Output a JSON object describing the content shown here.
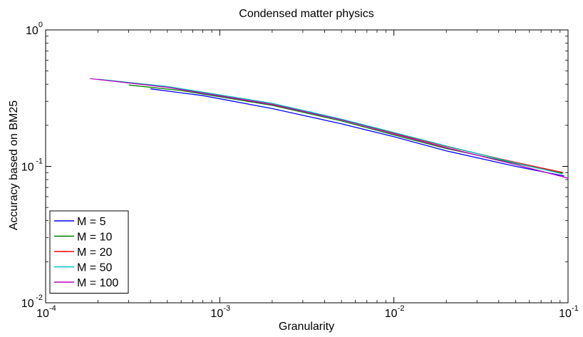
{
  "chart_data": {
    "type": "line",
    "title": "Condensed matter physics",
    "xlabel": "Granularity",
    "ylabel": "Accuracy based on BM25",
    "xscale": "log",
    "yscale": "log",
    "xlim": [
      0.0001,
      0.1
    ],
    "ylim": [
      0.01,
      1
    ],
    "x_ticks": [
      {
        "base": "10",
        "exp": "-4",
        "value": 0.0001
      },
      {
        "base": "10",
        "exp": "-3",
        "value": 0.001
      },
      {
        "base": "10",
        "exp": "-2",
        "value": 0.01
      },
      {
        "base": "10",
        "exp": "-1",
        "value": 0.1
      }
    ],
    "y_ticks": [
      {
        "base": "10",
        "exp": "-2",
        "value": 0.01
      },
      {
        "base": "10",
        "exp": "-1",
        "value": 0.1
      },
      {
        "base": "10",
        "exp": "0",
        "value": 1
      }
    ],
    "grid": false,
    "legend_position": "bottom-left",
    "series": [
      {
        "name": "M = 5",
        "color": "#0000ff",
        "points": [
          [
            0.0004,
            0.37
          ],
          [
            0.0008,
            0.33
          ],
          [
            0.002,
            0.265
          ],
          [
            0.005,
            0.205
          ],
          [
            0.01,
            0.165
          ],
          [
            0.02,
            0.13
          ],
          [
            0.05,
            0.1
          ],
          [
            0.095,
            0.085
          ]
        ]
      },
      {
        "name": "M = 10",
        "color": "#008000",
        "points": [
          [
            0.0003,
            0.395
          ],
          [
            0.0006,
            0.36
          ],
          [
            0.002,
            0.28
          ],
          [
            0.005,
            0.215
          ],
          [
            0.01,
            0.17
          ],
          [
            0.02,
            0.135
          ],
          [
            0.05,
            0.105
          ],
          [
            0.093,
            0.089
          ]
        ]
      },
      {
        "name": "M = 20",
        "color": "#ff0000",
        "points": [
          [
            0.00025,
            0.42
          ],
          [
            0.0006,
            0.37
          ],
          [
            0.002,
            0.285
          ],
          [
            0.005,
            0.22
          ],
          [
            0.01,
            0.175
          ],
          [
            0.02,
            0.14
          ],
          [
            0.05,
            0.107
          ],
          [
            0.094,
            0.09
          ]
        ]
      },
      {
        "name": "M = 50",
        "color": "#00bfbf",
        "points": [
          [
            0.0002,
            0.435
          ],
          [
            0.0005,
            0.385
          ],
          [
            0.002,
            0.29
          ],
          [
            0.005,
            0.222
          ],
          [
            0.01,
            0.177
          ],
          [
            0.02,
            0.141
          ],
          [
            0.05,
            0.106
          ],
          [
            0.093,
            0.088
          ]
        ]
      },
      {
        "name": "M = 100",
        "color": "#bf00bf",
        "points": [
          [
            0.00018,
            0.44
          ],
          [
            0.0005,
            0.38
          ],
          [
            0.002,
            0.284
          ],
          [
            0.005,
            0.219
          ],
          [
            0.01,
            0.173
          ],
          [
            0.02,
            0.137
          ],
          [
            0.05,
            0.103
          ],
          [
            0.1,
            0.082
          ]
        ]
      }
    ]
  }
}
